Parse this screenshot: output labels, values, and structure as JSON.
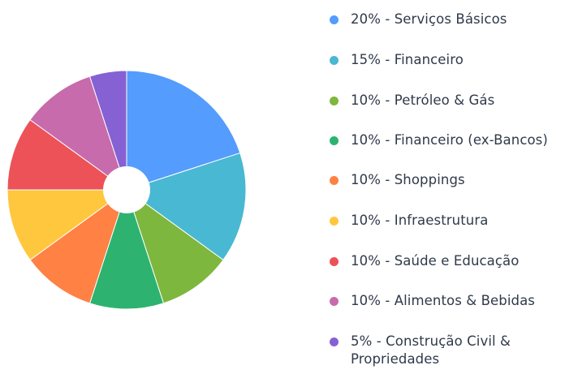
{
  "chart_data": {
    "type": "pie",
    "donut_hole": true,
    "legend_position": "right",
    "slices": [
      {
        "percent_label": "20%",
        "label": "Serviços Básicos",
        "value": 20,
        "color": "#549cfd"
      },
      {
        "percent_label": "15%",
        "label": "Financeiro",
        "value": 15,
        "color": "#49b8d2"
      },
      {
        "percent_label": "10%",
        "label": "Petróleo & Gás",
        "value": 10,
        "color": "#7db73e"
      },
      {
        "percent_label": "10%",
        "label": "Financeiro (ex-Bancos)",
        "value": 10,
        "color": "#2db36f"
      },
      {
        "percent_label": "10%",
        "label": "Shoppings",
        "value": 10,
        "color": "#ff8143"
      },
      {
        "percent_label": "10%",
        "label": "Infraestrutura",
        "value": 10,
        "color": "#ffc73e"
      },
      {
        "percent_label": "10%",
        "label": "Saúde e Educação",
        "value": 10,
        "color": "#ec5258"
      },
      {
        "percent_label": "10%",
        "label": "Alimentos & Bebidas",
        "value": 10,
        "color": "#c76bac"
      },
      {
        "percent_label": "5%",
        "label": "Construção Civil & Propriedades",
        "value": 5,
        "color": "#8661d3"
      }
    ]
  }
}
